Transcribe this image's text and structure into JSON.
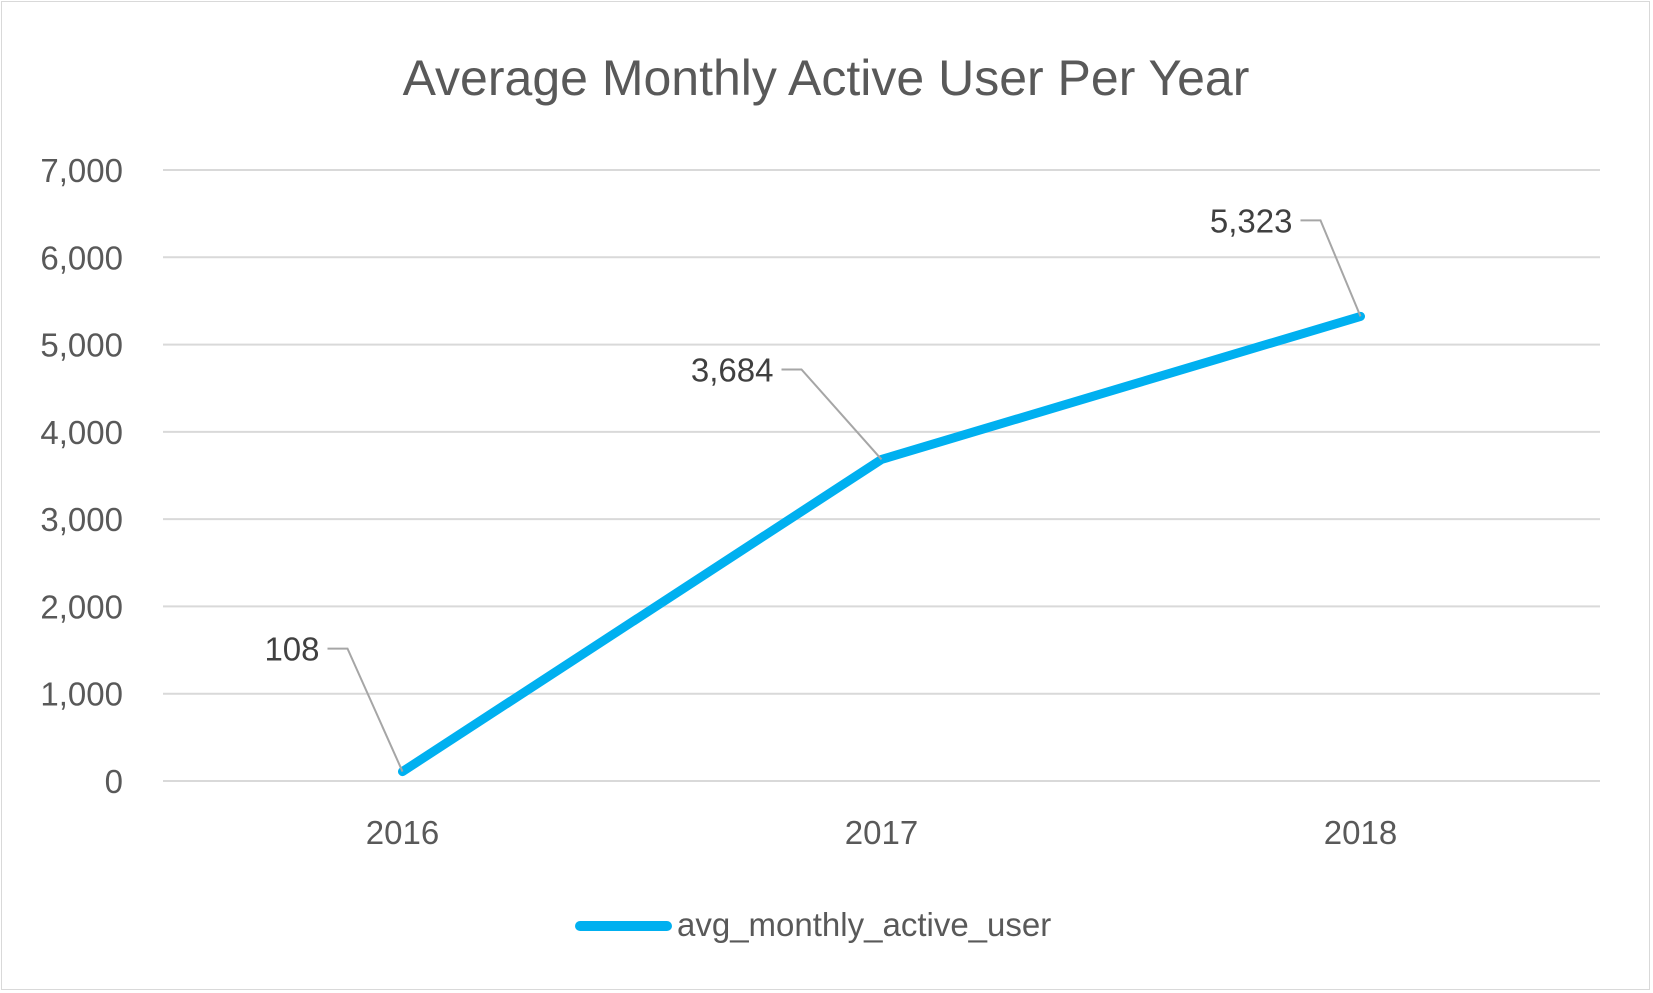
{
  "chart_data": {
    "type": "line",
    "title": "Average Monthly Active User Per Year",
    "categories": [
      "2016",
      "2017",
      "2018"
    ],
    "series": [
      {
        "name": "avg_monthly_active_user",
        "values": [
          108,
          3684,
          5323
        ],
        "data_labels": [
          "108",
          "3,684",
          "5,323"
        ],
        "color": "#00B0F0"
      }
    ],
    "xlabel": "",
    "ylabel": "",
    "ylim": [
      0,
      7000
    ],
    "yticks": [
      0,
      1000,
      2000,
      3000,
      4000,
      5000,
      6000,
      7000
    ],
    "ytick_labels": [
      "0",
      "1,000",
      "2,000",
      "3,000",
      "4,000",
      "5,000",
      "6,000",
      "7,000"
    ],
    "grid": true,
    "legend": "bottom",
    "colors": {
      "text": "#595959",
      "gridline": "#d9d9d9",
      "leader": "#a6a6a6"
    }
  }
}
